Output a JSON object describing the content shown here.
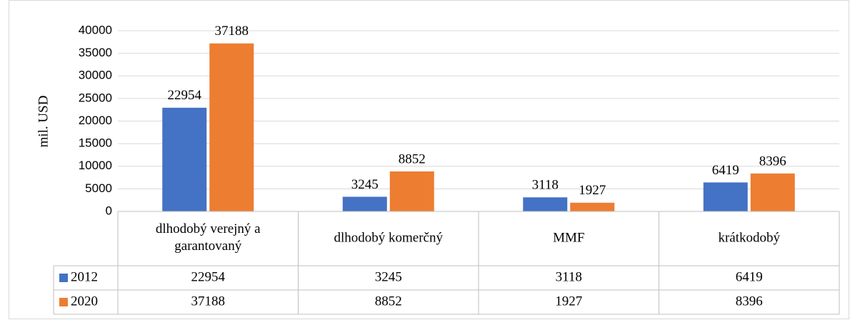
{
  "chart_data": {
    "type": "bar",
    "y_label": "mil. USD",
    "categories": [
      "dlhodobý verejný a garantovaný",
      "dlhodobý komerčný",
      "MMF",
      "krátkodobý"
    ],
    "series": [
      {
        "name": "2012",
        "color": "#4472c4",
        "values": [
          22954,
          3245,
          3118,
          6419
        ]
      },
      {
        "name": "2020",
        "color": "#ed7d31",
        "values": [
          37188,
          8852,
          1927,
          8396
        ]
      }
    ],
    "ylim": [
      0,
      40000
    ],
    "yticks": [
      0,
      5000,
      10000,
      15000,
      20000,
      25000,
      30000,
      35000,
      40000
    ],
    "grid": true,
    "data_labels": true,
    "data_table": true
  }
}
